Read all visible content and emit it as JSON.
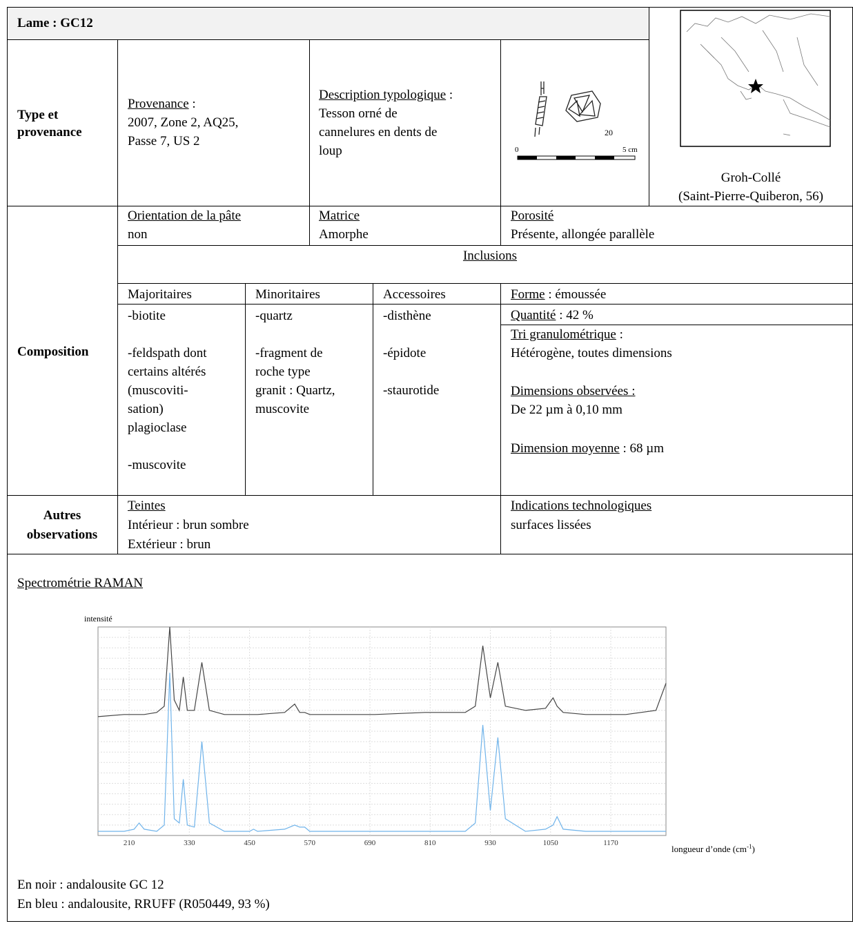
{
  "header": {
    "title": "Lame : GC12"
  },
  "type_row": {
    "label": [
      "Type et",
      "provenance"
    ],
    "provenance": {
      "heading": "Provenance",
      "suffix": " :",
      "lines": [
        "2007, Zone 2, AQ25,",
        "Passe 7, US 2"
      ]
    },
    "description": {
      "heading": "Description typologique",
      "suffix": " :",
      "lines": [
        "Tesson orné de",
        "cannelures en dents de",
        "loup"
      ]
    },
    "drawing": {
      "number": "20",
      "scale_start": "0",
      "scale_end": "5 cm"
    },
    "site": [
      "Groh-Collé",
      "(Saint-Pierre-Quiberon, 56)"
    ]
  },
  "composition": {
    "label": "Composition",
    "orientation": {
      "heading": "Orientation de la pâte",
      "text": "non"
    },
    "matrice": {
      "heading": "Matrice",
      "text": "Amorphe"
    },
    "porosite": {
      "heading": "Porosité",
      "text": "Présente, allongée parallèle"
    },
    "inclusions": "Inclusions",
    "columns": [
      {
        "heading": "Majoritaires",
        "paragraphs": [
          [
            "-biotite"
          ],
          [
            "-feldspath dont",
            "certains altérés",
            "(muscoviti-",
            "sation)",
            "plagioclase"
          ],
          [
            "-muscovite"
          ]
        ]
      },
      {
        "heading": "Minoritaires",
        "paragraphs": [
          [
            "-quartz"
          ],
          [
            "-fragment de",
            "roche type",
            "granit : Quartz,",
            "muscovite"
          ]
        ]
      },
      {
        "heading": "Accessoires",
        "paragraphs": [
          [
            "-disthène"
          ],
          [
            "-épidote"
          ],
          [
            "-staurotide"
          ]
        ]
      }
    ],
    "forme": {
      "heading": "Forme",
      "text": " : émoussée"
    },
    "quantite": {
      "heading": "Quantité",
      "text": " : 42  %"
    },
    "tri": {
      "heading": "Tri granulométrique",
      "text": " :",
      "lines": [
        "Hétérogène, toutes dimensions"
      ]
    },
    "dimensions": {
      "heading": "Dimensions observées :",
      "text": "De 22 µm à 0,10 mm"
    },
    "moyenne": {
      "heading": "Dimension moyenne",
      "text": " : 68 µm"
    }
  },
  "autres": {
    "label": [
      "Autres",
      "observations"
    ],
    "teintes": {
      "heading": "Teintes",
      "lines": [
        "Intérieur : brun sombre",
        "Extérieur : brun"
      ]
    },
    "techno": {
      "heading": "Indications technologiques",
      "lines": [
        "surfaces lissées"
      ]
    }
  },
  "spectrum": {
    "title": "Spectrométrie RAMAN"
  },
  "chart_data": {
    "type": "line",
    "y_label": "intensité",
    "x_label": {
      "text": "longueur d’onde (cm",
      "sup": "-1",
      "suffix": ")"
    },
    "xlim": [
      148,
      1280
    ],
    "ylim": [
      0,
      100
    ],
    "xticks": [
      210,
      330,
      450,
      570,
      690,
      810,
      930,
      1050,
      1170
    ],
    "grid": true,
    "x": [
      148,
      200,
      220,
      230,
      240,
      265,
      280,
      291,
      300,
      310,
      318,
      326,
      340,
      355,
      370,
      400,
      450,
      458,
      466,
      520,
      540,
      550,
      560,
      570,
      620,
      700,
      800,
      880,
      900,
      915,
      930,
      945,
      960,
      1000,
      1040,
      1055,
      1063,
      1075,
      1120,
      1200,
      1260,
      1280
    ],
    "series": [
      {
        "name": "En noir : andalousite GC 12",
        "color": "#444444",
        "values": [
          57,
          58,
          58,
          58,
          58,
          59,
          62,
          100,
          65,
          60,
          76,
          60,
          60,
          83,
          60,
          58,
          58,
          58,
          58,
          59,
          63,
          59,
          59,
          58,
          58,
          58,
          59,
          59,
          62,
          91,
          66,
          83,
          62,
          60,
          61,
          66,
          62,
          59,
          58,
          58,
          60,
          73
        ]
      },
      {
        "name": "En bleu : andalousite, RRUFF (R050449, 93 %)",
        "color": "#6fb3ea",
        "values": [
          2,
          2,
          3,
          6,
          3,
          2,
          5,
          78,
          8,
          6,
          27,
          5,
          4,
          45,
          6,
          2,
          2,
          3,
          2,
          3,
          5,
          4,
          4,
          2,
          2,
          2,
          2,
          2,
          6,
          53,
          12,
          47,
          8,
          2,
          3,
          5,
          9,
          3,
          2,
          2,
          2,
          2
        ]
      }
    ]
  }
}
